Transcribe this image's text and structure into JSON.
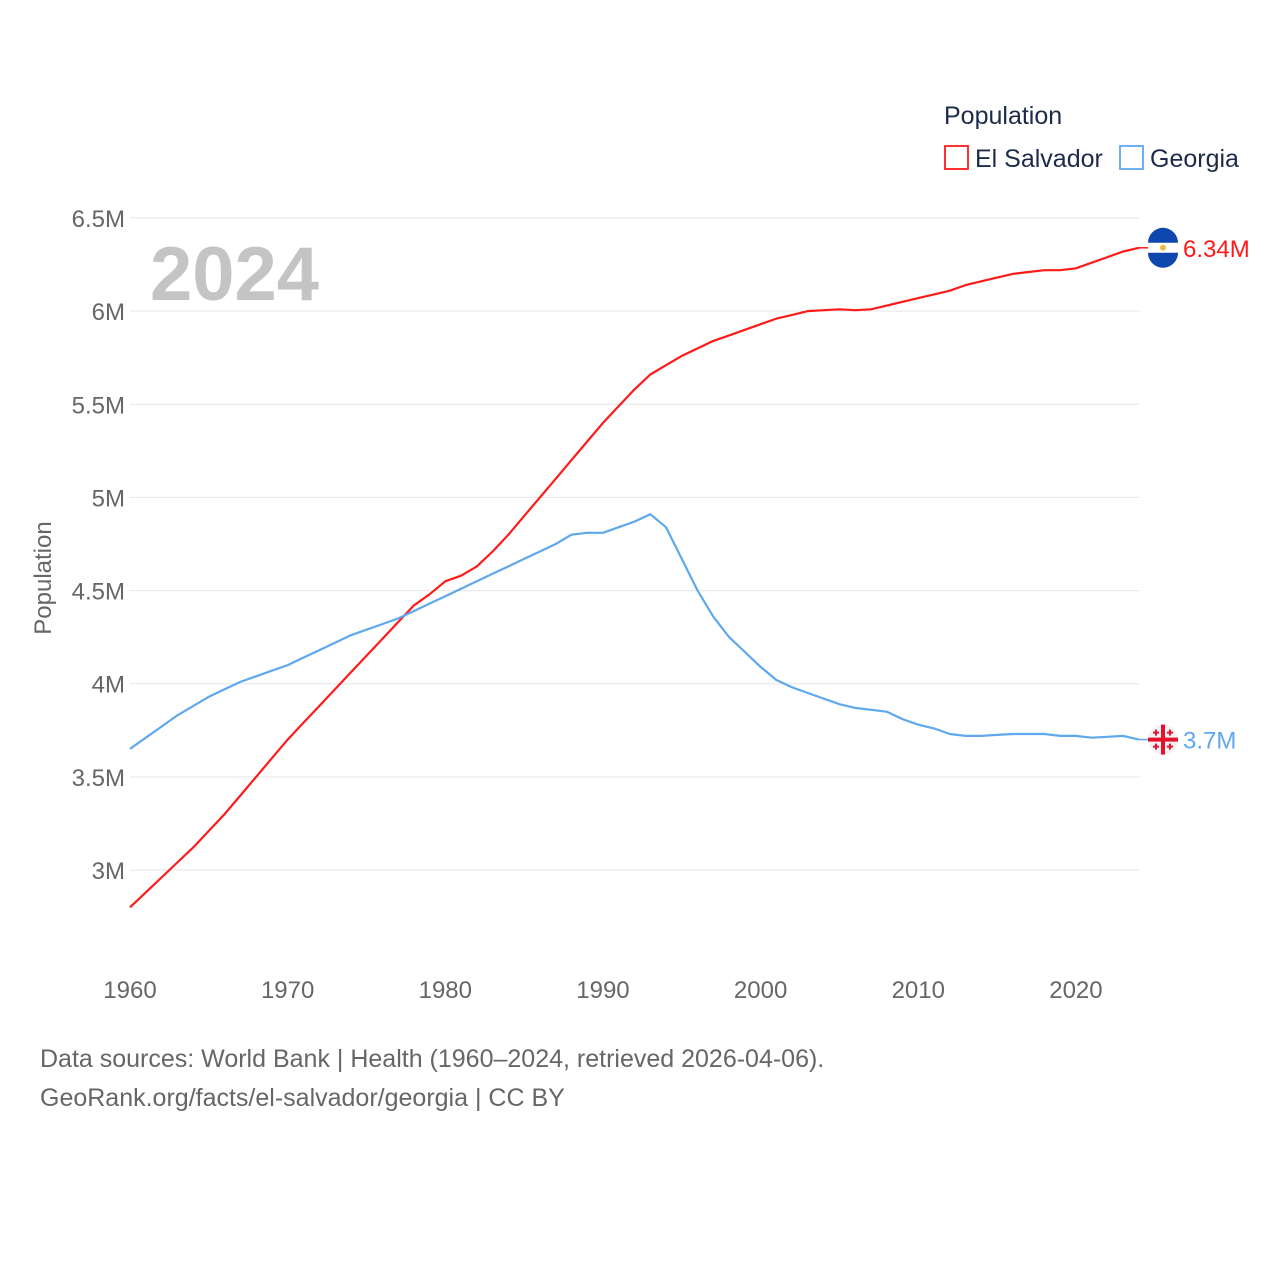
{
  "chart_data": {
    "type": "line",
    "title": "Population",
    "year_label": "2024",
    "xlabel": "",
    "ylabel": "Population",
    "xlim": [
      1960,
      2024
    ],
    "ylim": [
      2.75,
      6.5
    ],
    "x_ticks": [
      1960,
      1970,
      1980,
      1990,
      2000,
      2010,
      2020
    ],
    "y_ticks": [
      {
        "value": 3,
        "label": "3M"
      },
      {
        "value": 3.5,
        "label": "3.5M"
      },
      {
        "value": 4,
        "label": "4M"
      },
      {
        "value": 4.5,
        "label": "4.5M"
      },
      {
        "value": 5,
        "label": "5M"
      },
      {
        "value": 5.5,
        "label": "5.5M"
      },
      {
        "value": 6,
        "label": "6M"
      },
      {
        "value": 6.5,
        "label": "6.5M"
      }
    ],
    "grid": true,
    "legend_position": "top-right",
    "x_start": 1960,
    "series": [
      {
        "name": "El Salvador",
        "color": "#ff1a1a",
        "end_label": "6.34M",
        "flag": "el-salvador-flag",
        "values": [
          2.8,
          2.88,
          2.96,
          3.04,
          3.12,
          3.21,
          3.3,
          3.4,
          3.5,
          3.6,
          3.7,
          3.79,
          3.88,
          3.97,
          4.06,
          4.15,
          4.24,
          4.33,
          4.42,
          4.48,
          4.55,
          4.58,
          4.63,
          4.71,
          4.8,
          4.9,
          5.0,
          5.1,
          5.2,
          5.3,
          5.4,
          5.49,
          5.58,
          5.66,
          5.71,
          5.76,
          5.8,
          5.84,
          5.87,
          5.9,
          5.93,
          5.96,
          5.98,
          6.0,
          6.005,
          6.01,
          6.005,
          6.01,
          6.03,
          6.05,
          6.07,
          6.09,
          6.11,
          6.14,
          6.16,
          6.18,
          6.2,
          6.21,
          6.22,
          6.22,
          6.23,
          6.26,
          6.29,
          6.32,
          6.34
        ]
      },
      {
        "name": "Georgia",
        "color": "#5fa8ee",
        "end_label": "3.7M",
        "flag": "georgia-flag",
        "values": [
          3.65,
          3.71,
          3.77,
          3.83,
          3.88,
          3.93,
          3.97,
          4.01,
          4.04,
          4.07,
          4.1,
          4.14,
          4.18,
          4.22,
          4.26,
          4.29,
          4.32,
          4.35,
          4.39,
          4.43,
          4.47,
          4.51,
          4.55,
          4.59,
          4.63,
          4.67,
          4.71,
          4.75,
          4.8,
          4.81,
          4.81,
          4.84,
          4.87,
          4.91,
          4.84,
          4.67,
          4.5,
          4.36,
          4.25,
          4.17,
          4.09,
          4.02,
          3.98,
          3.95,
          3.92,
          3.89,
          3.87,
          3.86,
          3.85,
          3.81,
          3.78,
          3.76,
          3.73,
          3.72,
          3.72,
          3.725,
          3.73,
          3.73,
          3.73,
          3.72,
          3.72,
          3.71,
          3.715,
          3.72,
          3.7
        ]
      }
    ]
  },
  "footer": {
    "sources": "Data sources: World Bank | Health (1960–2024, retrieved 2026-04-06).",
    "credit": "GeoRank.org/facts/el-salvador/georgia | CC BY"
  }
}
